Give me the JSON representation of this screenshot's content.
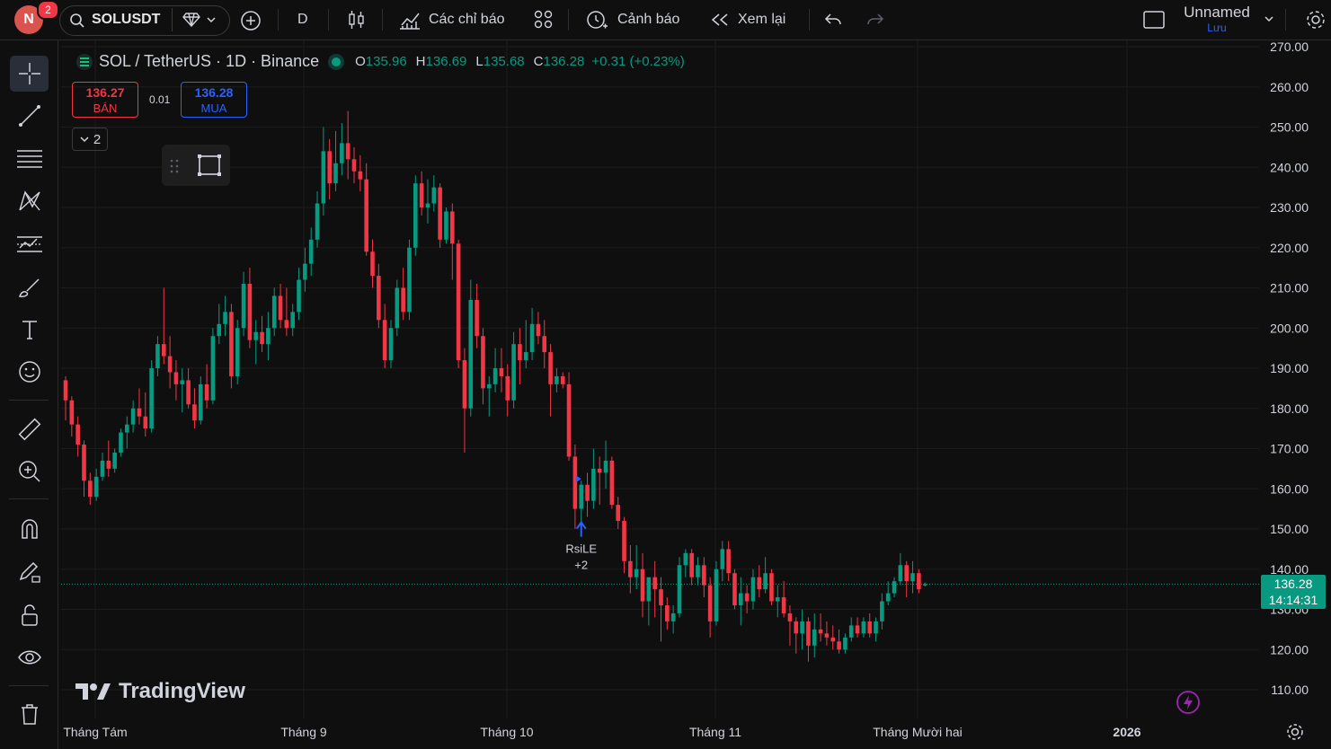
{
  "header": {
    "avatar_letter": "N",
    "notification_count": "2",
    "symbol": "SOLUSDT",
    "interval": "D",
    "indicators_label": "Các chỉ báo",
    "alerts_label": "Cảnh báo",
    "replay_label": "Xem lại",
    "layout_name": "Unnamed",
    "save_label": "Lưu"
  },
  "legend": {
    "title": "SOL / TetherUS · 1D · Binance",
    "o_label": "O",
    "o": "135.96",
    "h_label": "H",
    "h": "136.69",
    "l_label": "L",
    "l": "135.68",
    "c_label": "C",
    "c": "136.28",
    "change": "+0.31 (+0.23%)"
  },
  "trade": {
    "sell_price": "136.27",
    "sell_label": "BÁN",
    "spread": "0.01",
    "buy_price": "136.28",
    "buy_label": "MUA",
    "collapse_count": "2"
  },
  "signal": {
    "name": "RsiLE",
    "count": "+2"
  },
  "brand": "TradingView",
  "price_axis": {
    "labels": [
      "270.00",
      "260.00",
      "250.00",
      "240.00",
      "230.00",
      "220.00",
      "210.00",
      "200.00",
      "190.00",
      "180.00",
      "170.00",
      "160.00",
      "150.00",
      "140.00",
      "130.00",
      "120.00",
      "110.00"
    ],
    "current_price": "136.28",
    "countdown": "14:14:31"
  },
  "time_axis": {
    "labels": [
      "Tháng Tám",
      "Tháng 9",
      "Tháng 10",
      "Tháng 11",
      "Tháng Mười hai",
      "2026"
    ]
  },
  "colors": {
    "up": "#089981",
    "down": "#f23645",
    "accent": "#2962ff",
    "background": "#0f0f0f"
  },
  "chart_data": {
    "type": "candlestick",
    "ylim": [
      105,
      272
    ],
    "candles_ohlc": [
      [
        187,
        188,
        177,
        182
      ],
      [
        182,
        183,
        173,
        176
      ],
      [
        176,
        178,
        168,
        171
      ],
      [
        171,
        172,
        158,
        162
      ],
      [
        162,
        164,
        156,
        158
      ],
      [
        158,
        165,
        157,
        163
      ],
      [
        163,
        169,
        162,
        167
      ],
      [
        167,
        172,
        163,
        165
      ],
      [
        165,
        170,
        164,
        169
      ],
      [
        169,
        175,
        168,
        174
      ],
      [
        174,
        178,
        170,
        176
      ],
      [
        176,
        182,
        174,
        180
      ],
      [
        180,
        185,
        176,
        178
      ],
      [
        178,
        184,
        173,
        175
      ],
      [
        175,
        192,
        174,
        190
      ],
      [
        190,
        198,
        188,
        196
      ],
      [
        196,
        210,
        191,
        193
      ],
      [
        193,
        198,
        185,
        189
      ],
      [
        189,
        192,
        182,
        186
      ],
      [
        186,
        190,
        179,
        187
      ],
      [
        187,
        190,
        180,
        181
      ],
      [
        181,
        185,
        175,
        177
      ],
      [
        177,
        188,
        176,
        186
      ],
      [
        186,
        191,
        180,
        182
      ],
      [
        182,
        200,
        181,
        198
      ],
      [
        198,
        206,
        196,
        201
      ],
      [
        201,
        208,
        198,
        204
      ],
      [
        204,
        206,
        185,
        188
      ],
      [
        188,
        202,
        186,
        200
      ],
      [
        200,
        214,
        198,
        211
      ],
      [
        211,
        215,
        195,
        197
      ],
      [
        197,
        202,
        191,
        199
      ],
      [
        199,
        203,
        194,
        196
      ],
      [
        196,
        204,
        192,
        200
      ],
      [
        200,
        210,
        198,
        208
      ],
      [
        208,
        211,
        200,
        202
      ],
      [
        202,
        210,
        198,
        200
      ],
      [
        200,
        206,
        198,
        204
      ],
      [
        204,
        215,
        202,
        212
      ],
      [
        212,
        220,
        209,
        216
      ],
      [
        216,
        225,
        213,
        222
      ],
      [
        222,
        234,
        220,
        231
      ],
      [
        231,
        250,
        228,
        244
      ],
      [
        244,
        247,
        232,
        236
      ],
      [
        236,
        249,
        234,
        241
      ],
      [
        241,
        251,
        238,
        246
      ],
      [
        246,
        254,
        237,
        242
      ],
      [
        242,
        245,
        236,
        239
      ],
      [
        239,
        243,
        234,
        237
      ],
      [
        237,
        241,
        218,
        219
      ],
      [
        219,
        222,
        210,
        213
      ],
      [
        213,
        216,
        200,
        202
      ],
      [
        202,
        206,
        190,
        192
      ],
      [
        192,
        202,
        190,
        200
      ],
      [
        200,
        212,
        198,
        210
      ],
      [
        210,
        215,
        202,
        204
      ],
      [
        204,
        222,
        202,
        220
      ],
      [
        220,
        238,
        218,
        236
      ],
      [
        236,
        239,
        228,
        230
      ],
      [
        230,
        237,
        226,
        231
      ],
      [
        231,
        238,
        229,
        235
      ],
      [
        235,
        236,
        220,
        222
      ],
      [
        222,
        230,
        221,
        229
      ],
      [
        229,
        231,
        212,
        221
      ],
      [
        221,
        222,
        190,
        192
      ],
      [
        192,
        195,
        169,
        180
      ],
      [
        180,
        212,
        178,
        207
      ],
      [
        207,
        211,
        195,
        198
      ],
      [
        198,
        200,
        181,
        185
      ],
      [
        185,
        188,
        178,
        186
      ],
      [
        186,
        195,
        184,
        190
      ],
      [
        190,
        195,
        184,
        188
      ],
      [
        188,
        191,
        178,
        182
      ],
      [
        182,
        199,
        180,
        196
      ],
      [
        196,
        200,
        186,
        192
      ],
      [
        192,
        202,
        190,
        194
      ],
      [
        194,
        205,
        192,
        201
      ],
      [
        201,
        204,
        196,
        198
      ],
      [
        198,
        202,
        190,
        194
      ],
      [
        194,
        196,
        178,
        186
      ],
      [
        186,
        190,
        184,
        188
      ],
      [
        188,
        189,
        185,
        186
      ],
      [
        186,
        189,
        167,
        168
      ],
      [
        168,
        171,
        150,
        155
      ],
      [
        155,
        162,
        150,
        161
      ],
      [
        161,
        164,
        153,
        157
      ],
      [
        157,
        170,
        155,
        165
      ],
      [
        165,
        168,
        156,
        164
      ],
      [
        164,
        172,
        160,
        167
      ],
      [
        167,
        168,
        155,
        156
      ],
      [
        156,
        158,
        150,
        152
      ],
      [
        152,
        153,
        139,
        142
      ],
      [
        142,
        146,
        134,
        138
      ],
      [
        138,
        146,
        135,
        140
      ],
      [
        140,
        144,
        128,
        132
      ],
      [
        132,
        135,
        126,
        138
      ],
      [
        138,
        142,
        128,
        135
      ],
      [
        135,
        138,
        122,
        131
      ],
      [
        131,
        133,
        125,
        127
      ],
      [
        127,
        131,
        124,
        129
      ],
      [
        129,
        143,
        128,
        141
      ],
      [
        141,
        145,
        138,
        144
      ],
      [
        144,
        145,
        136,
        138
      ],
      [
        138,
        143,
        136,
        141
      ],
      [
        141,
        143,
        133,
        136
      ],
      [
        136,
        138,
        123,
        127
      ],
      [
        127,
        142,
        126,
        140
      ],
      [
        140,
        147,
        137,
        145
      ],
      [
        145,
        147,
        137,
        139
      ],
      [
        139,
        140,
        130,
        131
      ],
      [
        131,
        138,
        126,
        134
      ],
      [
        134,
        136,
        129,
        132
      ],
      [
        132,
        140,
        130,
        138
      ],
      [
        138,
        141,
        133,
        135
      ],
      [
        135,
        143,
        134,
        139
      ],
      [
        139,
        140,
        131,
        132
      ],
      [
        132,
        136,
        128,
        133
      ],
      [
        133,
        137,
        128,
        129
      ],
      [
        129,
        131,
        121,
        127
      ],
      [
        127,
        128,
        119,
        124
      ],
      [
        124,
        130,
        120,
        127
      ],
      [
        127,
        128,
        117,
        121
      ],
      [
        121,
        129,
        118,
        125
      ],
      [
        125,
        129,
        122,
        124
      ],
      [
        124,
        127,
        121,
        123
      ],
      [
        123,
        126,
        120,
        122
      ],
      [
        122,
        125,
        119,
        120
      ],
      [
        120,
        124,
        119,
        123
      ],
      [
        123,
        128,
        122,
        126
      ],
      [
        126,
        128,
        123,
        124
      ],
      [
        124,
        128,
        123,
        127
      ],
      [
        127,
        129,
        123,
        124
      ],
      [
        124,
        128,
        122,
        127
      ],
      [
        127,
        134,
        125,
        132
      ],
      [
        132,
        137,
        131,
        134
      ],
      [
        134,
        138,
        133,
        137
      ],
      [
        137,
        144,
        136,
        141
      ],
      [
        141,
        142,
        133,
        137
      ],
      [
        137,
        142,
        134,
        139
      ],
      [
        139,
        140,
        134,
        135
      ],
      [
        135.96,
        136.69,
        135.68,
        136.28
      ]
    ]
  }
}
